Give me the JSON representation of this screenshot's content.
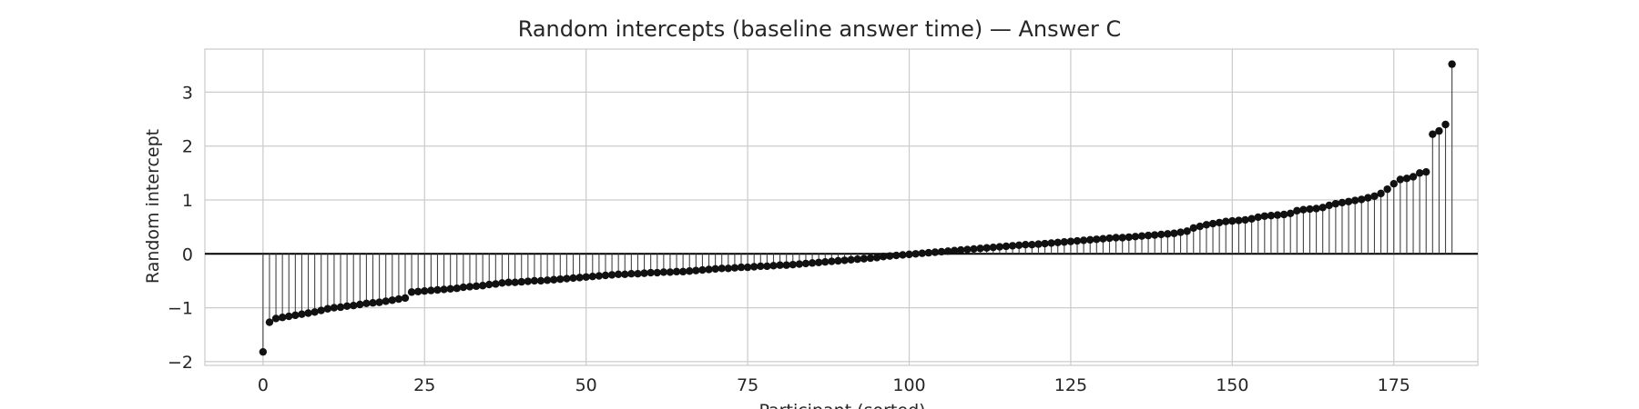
{
  "chart_data": {
    "type": "stem",
    "title": "Random intercepts (baseline answer time) — Answer C",
    "xlabel": "Participant (sorted)",
    "ylabel": "Random intercept",
    "xlim": [
      -9,
      188
    ],
    "ylim": [
      -2.07,
      3.8
    ],
    "xticks": [
      0,
      25,
      50,
      75,
      100,
      125,
      150,
      175
    ],
    "yticks": [
      -2,
      -1,
      0,
      1,
      2,
      3
    ],
    "grid": true,
    "baseline": 0,
    "x_start": 0,
    "values": [
      -1.82,
      -1.27,
      -1.2,
      -1.18,
      -1.16,
      -1.14,
      -1.12,
      -1.1,
      -1.08,
      -1.05,
      -1.02,
      -1.0,
      -0.99,
      -0.97,
      -0.96,
      -0.94,
      -0.92,
      -0.91,
      -0.9,
      -0.88,
      -0.86,
      -0.84,
      -0.82,
      -0.71,
      -0.7,
      -0.69,
      -0.68,
      -0.67,
      -0.66,
      -0.65,
      -0.64,
      -0.62,
      -0.61,
      -0.6,
      -0.59,
      -0.57,
      -0.56,
      -0.54,
      -0.53,
      -0.53,
      -0.52,
      -0.51,
      -0.5,
      -0.5,
      -0.49,
      -0.48,
      -0.47,
      -0.46,
      -0.45,
      -0.44,
      -0.43,
      -0.42,
      -0.41,
      -0.4,
      -0.39,
      -0.38,
      -0.38,
      -0.37,
      -0.37,
      -0.36,
      -0.35,
      -0.35,
      -0.34,
      -0.34,
      -0.33,
      -0.33,
      -0.32,
      -0.31,
      -0.3,
      -0.29,
      -0.28,
      -0.27,
      -0.27,
      -0.26,
      -0.25,
      -0.25,
      -0.24,
      -0.23,
      -0.23,
      -0.22,
      -0.21,
      -0.21,
      -0.2,
      -0.19,
      -0.18,
      -0.17,
      -0.16,
      -0.15,
      -0.14,
      -0.13,
      -0.12,
      -0.11,
      -0.1,
      -0.09,
      -0.08,
      -0.07,
      -0.05,
      -0.04,
      -0.03,
      -0.02,
      -0.01,
      0.0,
      0.01,
      0.02,
      0.03,
      0.04,
      0.05,
      0.06,
      0.07,
      0.08,
      0.09,
      0.1,
      0.11,
      0.12,
      0.13,
      0.14,
      0.15,
      0.16,
      0.17,
      0.17,
      0.18,
      0.19,
      0.2,
      0.21,
      0.22,
      0.23,
      0.24,
      0.25,
      0.26,
      0.27,
      0.28,
      0.29,
      0.3,
      0.3,
      0.31,
      0.32,
      0.33,
      0.34,
      0.35,
      0.36,
      0.37,
      0.38,
      0.4,
      0.42,
      0.48,
      0.51,
      0.54,
      0.56,
      0.58,
      0.6,
      0.61,
      0.62,
      0.63,
      0.65,
      0.68,
      0.7,
      0.71,
      0.72,
      0.73,
      0.75,
      0.8,
      0.82,
      0.83,
      0.84,
      0.86,
      0.9,
      0.93,
      0.95,
      0.97,
      0.99,
      1.01,
      1.04,
      1.07,
      1.12,
      1.2,
      1.3,
      1.38,
      1.4,
      1.43,
      1.5,
      1.52,
      2.22,
      2.28,
      2.4,
      3.52
    ]
  }
}
